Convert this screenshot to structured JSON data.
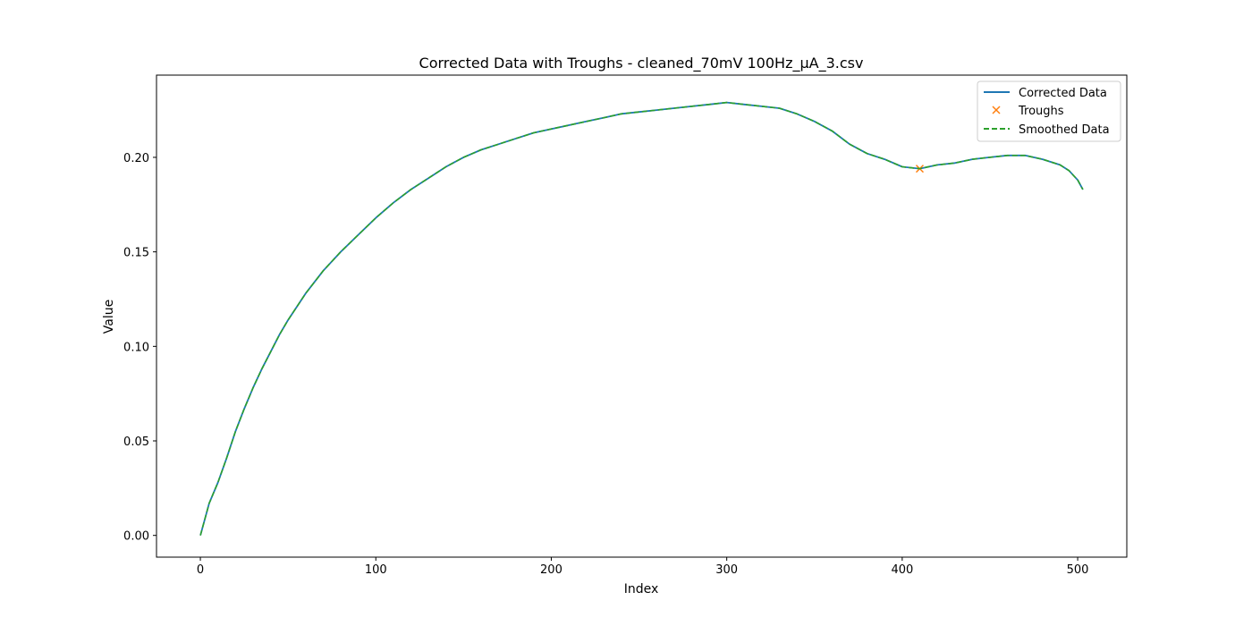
{
  "colors": {
    "corrected": "#1f77b4",
    "troughs": "#ff7f0e",
    "smoothed": "#2ca02c"
  },
  "chart_data": {
    "type": "line",
    "title": "Corrected Data with Troughs - cleaned_70mV 100Hz_µA_3.csv",
    "xlabel": "Index",
    "ylabel": "Value",
    "xlim": [
      -25,
      528
    ],
    "ylim": [
      -0.0115,
      0.2435
    ],
    "xticks": [
      0,
      100,
      200,
      300,
      400,
      500
    ],
    "yticks": [
      0.0,
      0.05,
      0.1,
      0.15,
      0.2
    ],
    "ytick_labels": [
      "0.00",
      "0.05",
      "0.10",
      "0.15",
      "0.20"
    ],
    "grid": false,
    "legend_position": "upper right",
    "series": [
      {
        "name": "Corrected Data",
        "style": "line",
        "x": [
          0,
          5,
          10,
          15,
          20,
          25,
          30,
          35,
          40,
          45,
          50,
          60,
          70,
          80,
          90,
          100,
          110,
          120,
          130,
          140,
          150,
          160,
          170,
          180,
          190,
          200,
          210,
          220,
          230,
          240,
          250,
          260,
          270,
          280,
          290,
          300,
          310,
          320,
          330,
          340,
          350,
          360,
          370,
          380,
          390,
          400,
          410,
          420,
          430,
          440,
          450,
          460,
          470,
          480,
          490,
          495,
          500,
          503
        ],
        "y": [
          0.0,
          0.017,
          0.028,
          0.041,
          0.055,
          0.067,
          0.078,
          0.088,
          0.097,
          0.106,
          0.114,
          0.128,
          0.14,
          0.15,
          0.159,
          0.168,
          0.176,
          0.183,
          0.189,
          0.195,
          0.2,
          0.204,
          0.207,
          0.21,
          0.213,
          0.215,
          0.217,
          0.219,
          0.221,
          0.223,
          0.224,
          0.225,
          0.226,
          0.227,
          0.228,
          0.229,
          0.228,
          0.227,
          0.226,
          0.223,
          0.219,
          0.214,
          0.207,
          0.202,
          0.199,
          0.195,
          0.194,
          0.196,
          0.197,
          0.199,
          0.2,
          0.201,
          0.201,
          0.199,
          0.196,
          0.193,
          0.188,
          0.183
        ]
      },
      {
        "name": "Troughs",
        "style": "x-marker",
        "x": [
          410
        ],
        "y": [
          0.194
        ]
      },
      {
        "name": "Smoothed Data",
        "style": "dashed",
        "x": [
          0,
          5,
          10,
          15,
          20,
          25,
          30,
          35,
          40,
          45,
          50,
          60,
          70,
          80,
          90,
          100,
          110,
          120,
          130,
          140,
          150,
          160,
          170,
          180,
          190,
          200,
          210,
          220,
          230,
          240,
          250,
          260,
          270,
          280,
          290,
          300,
          310,
          320,
          330,
          340,
          350,
          360,
          370,
          380,
          390,
          400,
          410,
          420,
          430,
          440,
          450,
          460,
          470,
          480,
          490,
          495,
          500,
          503
        ],
        "y": [
          0.0,
          0.017,
          0.028,
          0.041,
          0.055,
          0.067,
          0.078,
          0.088,
          0.097,
          0.106,
          0.114,
          0.128,
          0.14,
          0.15,
          0.159,
          0.168,
          0.176,
          0.183,
          0.189,
          0.195,
          0.2,
          0.204,
          0.207,
          0.21,
          0.213,
          0.215,
          0.217,
          0.219,
          0.221,
          0.223,
          0.224,
          0.225,
          0.226,
          0.227,
          0.228,
          0.229,
          0.228,
          0.227,
          0.226,
          0.223,
          0.219,
          0.214,
          0.207,
          0.202,
          0.199,
          0.195,
          0.194,
          0.196,
          0.197,
          0.199,
          0.2,
          0.201,
          0.201,
          0.199,
          0.196,
          0.193,
          0.188,
          0.183
        ]
      }
    ]
  }
}
